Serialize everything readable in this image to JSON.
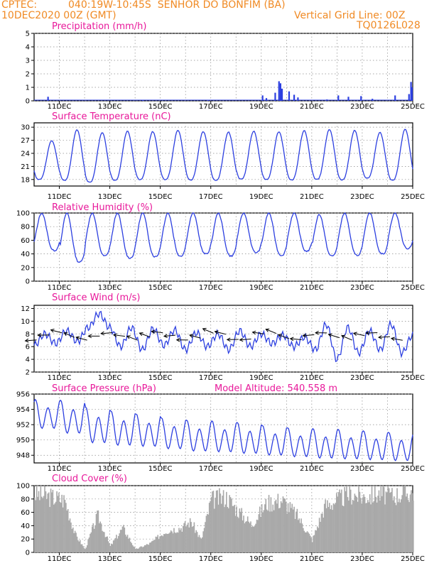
{
  "header": {
    "source": "CPTEC:",
    "location": "040:19W-10:45S  SENHOR DO BONFIM (BA)",
    "date": "10DEC2020 00Z (GMT)",
    "grid_note": "Vertical Grid Line: 00Z",
    "code": "TQ0126L028"
  },
  "colors": {
    "header": "#f08a24",
    "title": "#e8189a",
    "line": "#2c3fe0",
    "cloud": "#a9a9a9",
    "wind_arrow": "#000000"
  },
  "x_axis": {
    "labels": [
      "11DEC",
      "13DEC",
      "15DEC",
      "17DEC",
      "19DEC",
      "21DEC",
      "23DEC",
      "25DEC"
    ]
  },
  "chart_data": [
    {
      "type": "bar",
      "title": "Precipitation (mm/h)",
      "ylim": [
        0,
        5
      ],
      "yticks": [
        "0",
        "1",
        "2",
        "3",
        "4",
        "5"
      ],
      "bursts": [
        {
          "day": 10.55,
          "value": 0.3
        },
        {
          "day": 14.3,
          "value": 0.05
        },
        {
          "day": 16.9,
          "value": 0.05
        },
        {
          "day": 19.05,
          "value": 0.4
        },
        {
          "day": 19.2,
          "value": 0.2
        },
        {
          "day": 19.55,
          "value": 0.6
        },
        {
          "day": 19.7,
          "value": 1.45
        },
        {
          "day": 19.76,
          "value": 1.3
        },
        {
          "day": 19.82,
          "value": 0.9
        },
        {
          "day": 20.1,
          "value": 0.7
        },
        {
          "day": 20.3,
          "value": 0.45
        },
        {
          "day": 20.45,
          "value": 0.25
        },
        {
          "day": 21.6,
          "value": 0.1
        },
        {
          "day": 22.05,
          "value": 0.4
        },
        {
          "day": 22.45,
          "value": 0.3
        },
        {
          "day": 22.95,
          "value": 0.35
        },
        {
          "day": 23.4,
          "value": 0.15
        },
        {
          "day": 24.3,
          "value": 0.4
        },
        {
          "day": 24.85,
          "value": 0.5
        },
        {
          "day": 24.93,
          "value": 1.4
        },
        {
          "day": 24.97,
          "value": 1.0
        }
      ]
    },
    {
      "type": "line",
      "title": "Surface Temperature (nC)",
      "ylim": [
        16.5,
        31
      ],
      "yticks": [
        "18",
        "21",
        "24",
        "27",
        "30"
      ],
      "daily_max": [
        26.9,
        29.4,
        28.8,
        29.1,
        29.0,
        29.3,
        29.0,
        28.9,
        29.1,
        29.0,
        29.2,
        29.5,
        29.3,
        28.8,
        29.5
      ],
      "daily_min": [
        18.0,
        17.8,
        17.4,
        17.8,
        18.0,
        18.0,
        17.9,
        17.8,
        18.1,
        18.0,
        17.9,
        18.0,
        17.9,
        18.3,
        17.8
      ]
    },
    {
      "type": "line",
      "title": "Relative Humidity (%)",
      "ylim": [
        0,
        100
      ],
      "yticks": [
        "0",
        "20",
        "40",
        "60",
        "80",
        "100"
      ],
      "daily_max": [
        100,
        100,
        100,
        100,
        100,
        100,
        100,
        100,
        100,
        100,
        100,
        98,
        100,
        100,
        100
      ],
      "daily_min": [
        45,
        28,
        37,
        34,
        36,
        37,
        40,
        37,
        42,
        38,
        44,
        37,
        38,
        40,
        48
      ]
    },
    {
      "type": "line",
      "title": "Surface Wind (m/s)",
      "ylim": [
        2,
        12.5
      ],
      "yticks": [
        "2",
        "4",
        "6",
        "8",
        "10",
        "12"
      ],
      "speed": [
        6.2,
        8.0,
        6.5,
        8.5,
        6.8,
        9.0,
        11.2,
        9.0,
        6.0,
        9.0,
        5.5,
        8.8,
        6.2,
        8.6,
        5.5,
        8.2,
        6.0,
        8.0,
        5.5,
        8.5,
        6.0,
        8.0,
        6.5,
        7.8,
        6.0,
        7.5,
        5.5,
        9.5,
        4.0,
        9.0,
        5.0,
        8.5,
        5.5,
        9.5,
        5.0,
        7.8
      ]
    },
    {
      "type": "line",
      "title": "Surface Pressure (hPa)",
      "extra": "Model Altitude: 540.558 m",
      "ylim": [
        947,
        956
      ],
      "yticks": [
        "948",
        "950",
        "952",
        "954",
        "956"
      ],
      "daily_max": [
        955.3,
        955.2,
        954.3,
        953.8,
        953.4,
        952.9,
        952.6,
        952.5,
        952.3,
        951.9,
        951.6,
        951.5,
        951.4,
        951.2,
        951.0
      ],
      "daily_min": [
        951.0,
        950.3,
        949.0,
        948.7,
        948.6,
        948.3,
        948.0,
        947.9,
        947.7,
        947.5,
        947.3,
        947.1,
        947.0,
        946.9,
        946.8
      ]
    },
    {
      "type": "bar",
      "title": "Cloud Cover (%)",
      "ylim": [
        0,
        100
      ],
      "yticks": [
        "0",
        "20",
        "40",
        "60",
        "80",
        "100"
      ],
      "profile": [
        {
          "day": 10.0,
          "value": 95
        },
        {
          "day": 10.6,
          "value": 90
        },
        {
          "day": 11.2,
          "value": 85
        },
        {
          "day": 11.6,
          "value": 30
        },
        {
          "day": 12.0,
          "value": 5
        },
        {
          "day": 12.5,
          "value": 60
        },
        {
          "day": 13.0,
          "value": 10
        },
        {
          "day": 13.5,
          "value": 40
        },
        {
          "day": 14.0,
          "value": 5
        },
        {
          "day": 14.6,
          "value": 15
        },
        {
          "day": 15.2,
          "value": 35
        },
        {
          "day": 15.8,
          "value": 40
        },
        {
          "day": 16.2,
          "value": 50
        },
        {
          "day": 16.6,
          "value": 20
        },
        {
          "day": 17.0,
          "value": 85
        },
        {
          "day": 17.6,
          "value": 90
        },
        {
          "day": 18.0,
          "value": 70
        },
        {
          "day": 18.6,
          "value": 45
        },
        {
          "day": 19.2,
          "value": 80
        },
        {
          "day": 19.8,
          "value": 85
        },
        {
          "day": 20.4,
          "value": 60
        },
        {
          "day": 21.0,
          "value": 20
        },
        {
          "day": 21.5,
          "value": 75
        },
        {
          "day": 22.0,
          "value": 85
        },
        {
          "day": 22.5,
          "value": 95
        },
        {
          "day": 23.0,
          "value": 90
        },
        {
          "day": 23.6,
          "value": 95
        },
        {
          "day": 24.2,
          "value": 92
        },
        {
          "day": 25.0,
          "value": 98
        }
      ]
    }
  ]
}
